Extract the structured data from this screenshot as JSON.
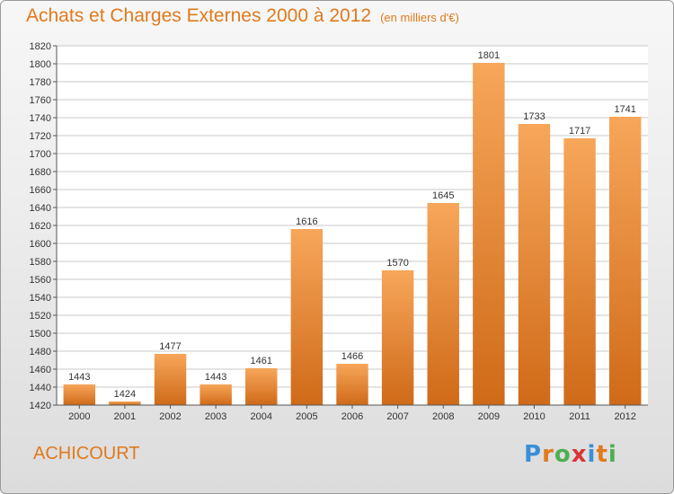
{
  "header": {
    "title": "Achats et Charges Externes 2000 à 2012",
    "unit": "(en milliers d'€)"
  },
  "footer": {
    "town": "ACHICOURT",
    "logo_letters": [
      "P",
      "r",
      "o",
      "x",
      "i",
      "t",
      "i"
    ],
    "logo_colors": [
      "#3a8fd8",
      "#e07a1c",
      "#4caf50",
      "#d93434",
      "#3a8fd8",
      "#e07a1c",
      "#4caf50"
    ]
  },
  "colors": {
    "accent": "#e07a1c",
    "bar_top": "#f7a65a",
    "bar_bottom": "#cf6a18"
  },
  "chart_data": {
    "type": "bar",
    "categories": [
      "2000",
      "2001",
      "2002",
      "2003",
      "2004",
      "2005",
      "2006",
      "2007",
      "2008",
      "2009",
      "2010",
      "2011",
      "2012"
    ],
    "values": [
      1443,
      1424,
      1477,
      1443,
      1461,
      1616,
      1466,
      1570,
      1645,
      1801,
      1733,
      1717,
      1741
    ],
    "ylim": [
      1420,
      1820
    ],
    "yticks": [
      1420,
      1440,
      1460,
      1480,
      1500,
      1520,
      1540,
      1560,
      1580,
      1600,
      1620,
      1640,
      1660,
      1680,
      1700,
      1720,
      1740,
      1760,
      1780,
      1800,
      1820
    ],
    "grid": true,
    "data_labels": true
  }
}
